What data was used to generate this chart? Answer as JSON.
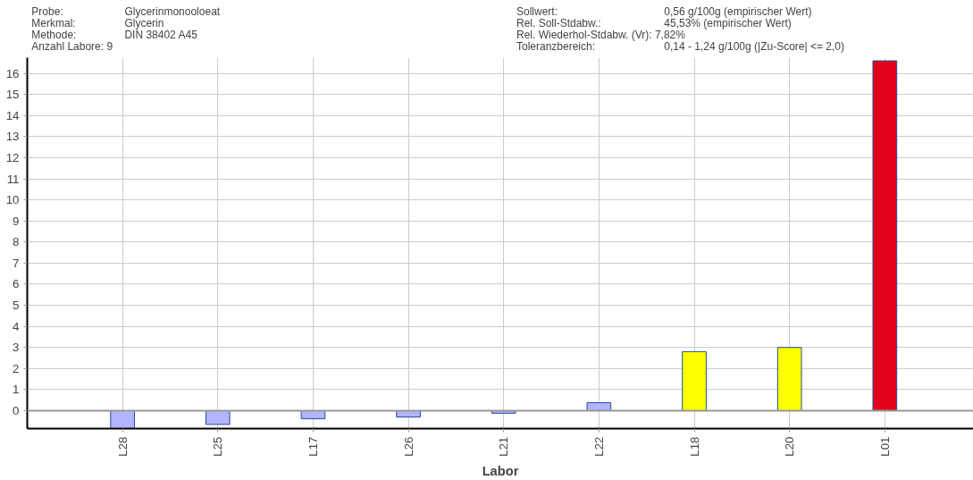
{
  "chart_data": {
    "type": "bar",
    "xlabel": "Labor",
    "categories": [
      "L28",
      "L25",
      "L17",
      "L26",
      "L21",
      "L22",
      "L18",
      "L20",
      "L01"
    ],
    "values": [
      -0.85,
      -0.65,
      -0.38,
      -0.3,
      -0.12,
      0.38,
      2.8,
      3.0,
      16.6
    ],
    "colors": [
      "#b3b3ff",
      "#b3b3ff",
      "#b3b3ff",
      "#b3b3ff",
      "#b3b3ff",
      "#b3b3ff",
      "#ffff00",
      "#ffff00",
      "#e2001a"
    ],
    "ylim": [
      -0.85,
      16.75
    ],
    "yticks": [
      0,
      1,
      2,
      3,
      4,
      5,
      6,
      7,
      8,
      9,
      10,
      11,
      12,
      13,
      14,
      15,
      16
    ],
    "grid": true,
    "ref_lines": [
      {
        "axis": "y",
        "value": 0,
        "color": "#999999"
      }
    ],
    "annotations": [
      "Probe:",
      "Merkmal:",
      "Methode:",
      "Anzahl Labore: 9",
      "Glycerinmonooloeat",
      "Glycerin",
      "DIN 38402 A45",
      "Sollwert:",
      "Rel. Soll-Stdabw.:",
      "Rel. Wiederhol-Stdabw. (Vr): 7,82%",
      "Toleranzbereich:",
      "0,56 g/100g (empirischer Wert)",
      "45,53% (empirischer Wert)",
      "0,14 - 1,24 g/100g (|Zu-Score| <= 2,0)"
    ]
  }
}
